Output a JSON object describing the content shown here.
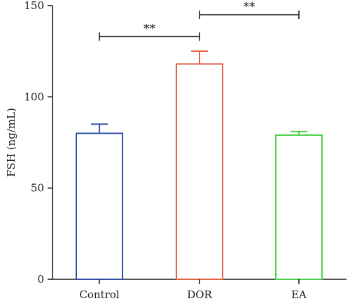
{
  "chart_data": {
    "type": "bar",
    "title": "",
    "xlabel": "",
    "ylabel": "FSH (ng/mL)",
    "ylim": [
      0,
      150
    ],
    "yticks": [
      0,
      50,
      100,
      150
    ],
    "grid": false,
    "categories": [
      "Control",
      "DOR",
      "EA"
    ],
    "values": [
      80,
      118,
      79
    ],
    "errors": [
      5,
      7,
      2
    ],
    "colors": [
      "#2f4fa8",
      "#e0623f",
      "#4cd04c"
    ],
    "fill": "#ffffff",
    "significance": [
      {
        "from": "Control",
        "to": "DOR",
        "label": "**",
        "y": 133
      },
      {
        "from": "DOR",
        "to": "EA",
        "label": "**",
        "y": 145
      }
    ]
  }
}
